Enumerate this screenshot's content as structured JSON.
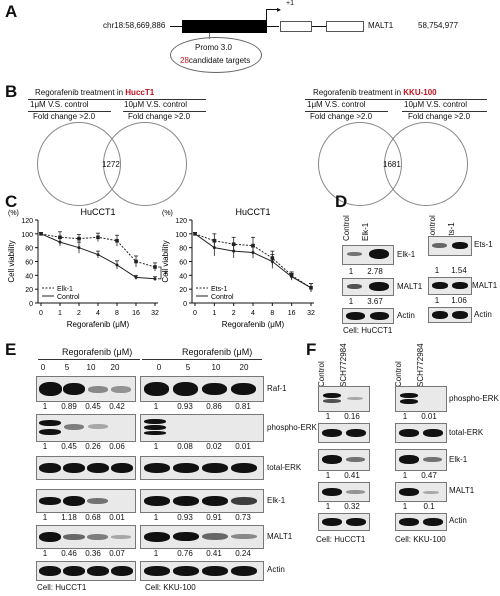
{
  "panelA": {
    "label": "A",
    "chr_start": "chr18:58,669,886",
    "chr_end": "58,754,977",
    "gene": "MALT1",
    "tss": "+1",
    "promo_title": "Promo 3.0",
    "candidates_count": "28",
    "candidates_text": "candidate targets"
  },
  "panelB": {
    "label": "B",
    "left": {
      "title_prefix": "Regorafenib treatment in ",
      "cell": "HuccT1",
      "cond1": "1μM V.S. control",
      "cond2": "10μM V.S. control",
      "fc1": "Fold change >2.0",
      "fc2": "Fold change >2.0",
      "overlap": "1272"
    },
    "right": {
      "title_prefix": "Regorafenib treatment in ",
      "cell": "KKU-100",
      "cond1": "1μM V.S. control",
      "cond2": "10μM V.S. control",
      "fc1": "Fold change >2.0",
      "fc2": "Fold change >2.0",
      "overlap": "1681"
    }
  },
  "panelC": {
    "label": "C",
    "unit": "(%)",
    "ylabel": "Cell viability",
    "xlabel": "Regorafenib (μM)",
    "star": "*"
  },
  "chart_data": [
    {
      "type": "line",
      "title": "HuCCT1",
      "xlabel": "Regorafenib (μM)",
      "ylabel": "Cell viability",
      "categories": [
        "0",
        "1",
        "2",
        "4",
        "8",
        "16",
        "32"
      ],
      "ylim": [
        0,
        120
      ],
      "yticks": [
        0,
        20,
        40,
        60,
        80,
        100,
        120
      ],
      "series": [
        {
          "name": "Elk-1",
          "values": [
            100,
            95,
            93,
            95,
            90,
            60,
            52
          ],
          "err": [
            2,
            8,
            6,
            6,
            8,
            8,
            6
          ]
        },
        {
          "name": "Control",
          "values": [
            100,
            88,
            80,
            70,
            55,
            37,
            35
          ],
          "err": [
            2,
            6,
            8,
            5,
            6,
            3,
            3
          ]
        }
      ],
      "legend": "bottom-left"
    },
    {
      "type": "line",
      "title": "HuCCT1",
      "xlabel": "Regorafenib (μM)",
      "ylabel": "Cell viability",
      "categories": [
        "0",
        "1",
        "2",
        "4",
        "8",
        "16",
        "32"
      ],
      "ylim": [
        0,
        120
      ],
      "yticks": [
        0,
        20,
        40,
        60,
        80,
        100,
        120
      ],
      "series": [
        {
          "name": "Ets-1",
          "values": [
            100,
            90,
            85,
            83,
            65,
            40,
            22
          ],
          "err": [
            2,
            10,
            10,
            12,
            10,
            5,
            6
          ]
        },
        {
          "name": "Control",
          "values": [
            100,
            80,
            75,
            73,
            60,
            38,
            22
          ],
          "err": [
            2,
            12,
            10,
            8,
            10,
            5,
            6
          ]
        }
      ],
      "legend": "bottom-left"
    }
  ],
  "panelD": {
    "label": "D",
    "left": {
      "lanes": [
        "Control",
        "Elk-1"
      ],
      "rows": [
        "Elk-1",
        "MALT1",
        "Actin"
      ],
      "elk_vals": [
        "1",
        "2.78"
      ],
      "malt_vals": [
        "1",
        "3.67"
      ]
    },
    "right": {
      "lanes": [
        "Control",
        "Ets-1"
      ],
      "rows": [
        "Ets-1",
        "MALT1",
        "Actin"
      ],
      "ets_vals": [
        "1",
        "1.54"
      ],
      "malt_vals": [
        "1",
        "1.06"
      ]
    },
    "cell": "Cell: HuCCT1"
  },
  "panelE": {
    "label": "E",
    "treat_left": "Regorafenib (μM)",
    "treat_right": "Regorafenib (μM)",
    "doses": [
      "0",
      "5",
      "10",
      "20"
    ],
    "rows": [
      "Raf-1",
      "phospho-ERK",
      "total-ERK",
      "Elk-1",
      "MALT1",
      "Actin"
    ],
    "left_vals": {
      "raf": [
        "1",
        "0.89",
        "0.45",
        "0.42"
      ],
      "perk": [
        "1",
        "0.45",
        "0.26",
        "0.06"
      ],
      "elk": [
        "1",
        "1.18",
        "0.68",
        "0.01"
      ],
      "malt": [
        "1",
        "0.46",
        "0.36",
        "0.07"
      ]
    },
    "right_vals": {
      "raf": [
        "1",
        "0.93",
        "0.86",
        "0.81"
      ],
      "perk": [
        "1",
        "0.08",
        "0.02",
        "0.01"
      ],
      "elk": [
        "1",
        "0.93",
        "0.91",
        "0.73"
      ],
      "malt": [
        "1",
        "0.76",
        "0.41",
        "0.24"
      ]
    },
    "cell_left": "Cell: HuCCT1",
    "cell_right": "Cell: KKU-100"
  },
  "panelF": {
    "label": "F",
    "lanes": [
      "Control",
      "SCH772984"
    ],
    "rows": [
      "phospho-ERK",
      "total-ERK",
      "Elk-1",
      "MALT1",
      "Actin"
    ],
    "left_vals": {
      "perk": [
        "1",
        "0.16"
      ],
      "elk": [
        "1",
        "0.41"
      ],
      "malt": [
        "1",
        "0.32"
      ]
    },
    "right_vals": {
      "perk": [
        "1",
        "0.01"
      ],
      "elk": [
        "1",
        "0.47"
      ],
      "malt": [
        "1",
        "0.1"
      ]
    },
    "cell_left": "Cell: HuCCT1",
    "cell_right": "Cell: KKU-100"
  }
}
